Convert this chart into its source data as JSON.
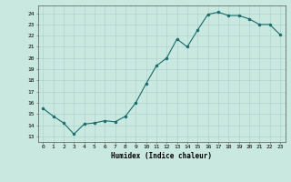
{
  "x": [
    0,
    1,
    2,
    3,
    4,
    5,
    6,
    7,
    8,
    9,
    10,
    11,
    12,
    13,
    14,
    15,
    16,
    17,
    18,
    19,
    20,
    21,
    22,
    23
  ],
  "y": [
    15.5,
    14.8,
    14.2,
    13.2,
    14.1,
    14.2,
    14.4,
    14.3,
    14.8,
    16.0,
    17.7,
    19.3,
    20.0,
    21.7,
    21.0,
    22.5,
    23.9,
    24.1,
    23.8,
    23.8,
    23.5,
    23.0,
    23.0,
    22.1
  ],
  "xlabel": "Humidex (Indice chaleur)",
  "ylim": [
    12.5,
    24.7
  ],
  "xlim": [
    -0.5,
    23.5
  ],
  "yticks": [
    13,
    14,
    15,
    16,
    17,
    18,
    19,
    20,
    21,
    22,
    23,
    24
  ],
  "xticks": [
    0,
    1,
    2,
    3,
    4,
    5,
    6,
    7,
    8,
    9,
    10,
    11,
    12,
    13,
    14,
    15,
    16,
    17,
    18,
    19,
    20,
    21,
    22,
    23
  ],
  "line_color": "#1a6b6b",
  "marker_color": "#1a6b6b",
  "bg_color": "#c8e8e0",
  "grid_color": "#aacece",
  "spine_color": "#555555"
}
